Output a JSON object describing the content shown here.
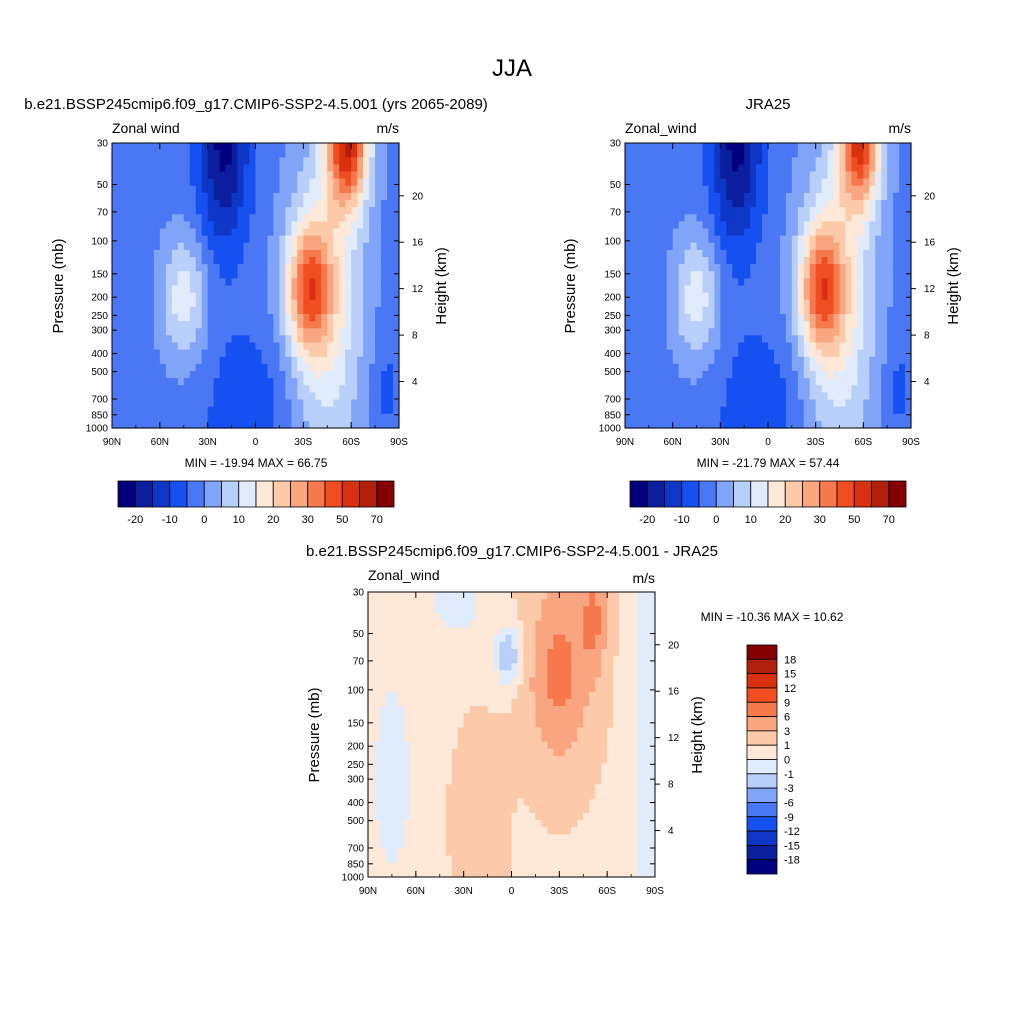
{
  "figure": {
    "title": "JJA"
  },
  "chart_data": [
    {
      "type": "heatmap",
      "title": "b.e21.BSSP245cmip6.f09_g17.CMIP6-SSP2-4.5.001 (yrs 2065-2089)",
      "left_label": "Zonal wind",
      "right_label": "m/s",
      "ylabel": "Pressure (mb)",
      "ylabel_right": "Height (km)",
      "x_ticks": [
        "90N",
        "60N",
        "30N",
        "0",
        "30S",
        "60S",
        "90S"
      ],
      "xlim": [
        90,
        -90
      ],
      "y_ticks": [
        30,
        50,
        70,
        100,
        150,
        200,
        250,
        300,
        400,
        500,
        700,
        850,
        1000
      ],
      "ylim": [
        1000,
        30
      ],
      "yscale": "log",
      "height_ticks": [
        20,
        16,
        12,
        8,
        4
      ],
      "min_max": "MIN = -19.94  MAX =  66.75",
      "min": -19.94,
      "max": 66.75,
      "colorbar": {
        "orientation": "horizontal",
        "tick_labels": [
          "-20",
          "-10",
          "0",
          "10",
          "20",
          "30",
          "50",
          "70"
        ],
        "colors": [
          "#00007f",
          "#0a1e9e",
          "#0f37c6",
          "#1650f0",
          "#4a78f5",
          "#80a4f7",
          "#b8cff9",
          "#e0ecfb",
          "#fee8d8",
          "#fccaa8",
          "#f9a57f",
          "#f6794e",
          "#f04e21",
          "#d9300f",
          "#b0200c",
          "#850000"
        ]
      }
    },
    {
      "type": "heatmap",
      "title": "JRA25",
      "left_label": "Zonal_wind",
      "right_label": "m/s",
      "ylabel": "Pressure (mb)",
      "ylabel_right": "Height (km)",
      "x_ticks": [
        "90N",
        "60N",
        "30N",
        "0",
        "30S",
        "60S",
        "90S"
      ],
      "xlim": [
        90,
        -90
      ],
      "y_ticks": [
        30,
        50,
        70,
        100,
        150,
        200,
        250,
        300,
        400,
        500,
        700,
        850,
        1000
      ],
      "ylim": [
        1000,
        30
      ],
      "yscale": "log",
      "height_ticks": [
        20,
        16,
        12,
        8,
        4
      ],
      "min_max": "MIN = -21.79  MAX =  57.44",
      "min": -21.79,
      "max": 57.44,
      "colorbar": {
        "orientation": "horizontal",
        "tick_labels": [
          "-20",
          "-10",
          "0",
          "10",
          "20",
          "30",
          "50",
          "70"
        ],
        "colors": [
          "#00007f",
          "#0a1e9e",
          "#0f37c6",
          "#1650f0",
          "#4a78f5",
          "#80a4f7",
          "#b8cff9",
          "#e0ecfb",
          "#fee8d8",
          "#fccaa8",
          "#f9a57f",
          "#f6794e",
          "#f04e21",
          "#d9300f",
          "#b0200c",
          "#850000"
        ]
      }
    },
    {
      "type": "heatmap",
      "title": "b.e21.BSSP245cmip6.f09_g17.CMIP6-SSP2-4.5.001 - JRA25",
      "left_label": "Zonal_wind",
      "right_label": "m/s",
      "ylabel": "Pressure (mb)",
      "ylabel_right": "Height (km)",
      "x_ticks": [
        "90N",
        "60N",
        "30N",
        "0",
        "30S",
        "60S",
        "90S"
      ],
      "xlim": [
        90,
        -90
      ],
      "y_ticks": [
        30,
        50,
        70,
        100,
        150,
        200,
        250,
        300,
        400,
        500,
        700,
        850,
        1000
      ],
      "ylim": [
        1000,
        30
      ],
      "yscale": "log",
      "height_ticks": [
        20,
        16,
        12,
        8,
        4
      ],
      "min_max": "MIN = -10.36  MAX =  10.62",
      "min": -10.36,
      "max": 10.62,
      "colorbar": {
        "orientation": "vertical",
        "tick_labels": [
          "18",
          "15",
          "12",
          "9",
          "6",
          "3",
          "1",
          "0",
          "-1",
          "-3",
          "-6",
          "-9",
          "-12",
          "-15",
          "-18"
        ],
        "colors": [
          "#850000",
          "#b0200c",
          "#d9300f",
          "#f04e21",
          "#f6794e",
          "#f9a57f",
          "#fccaa8",
          "#fee8d8",
          "#e0ecfb",
          "#b8cff9",
          "#80a4f7",
          "#4a78f5",
          "#1650f0",
          "#0f37c6",
          "#0a1e9e",
          "#00007f"
        ]
      }
    }
  ]
}
